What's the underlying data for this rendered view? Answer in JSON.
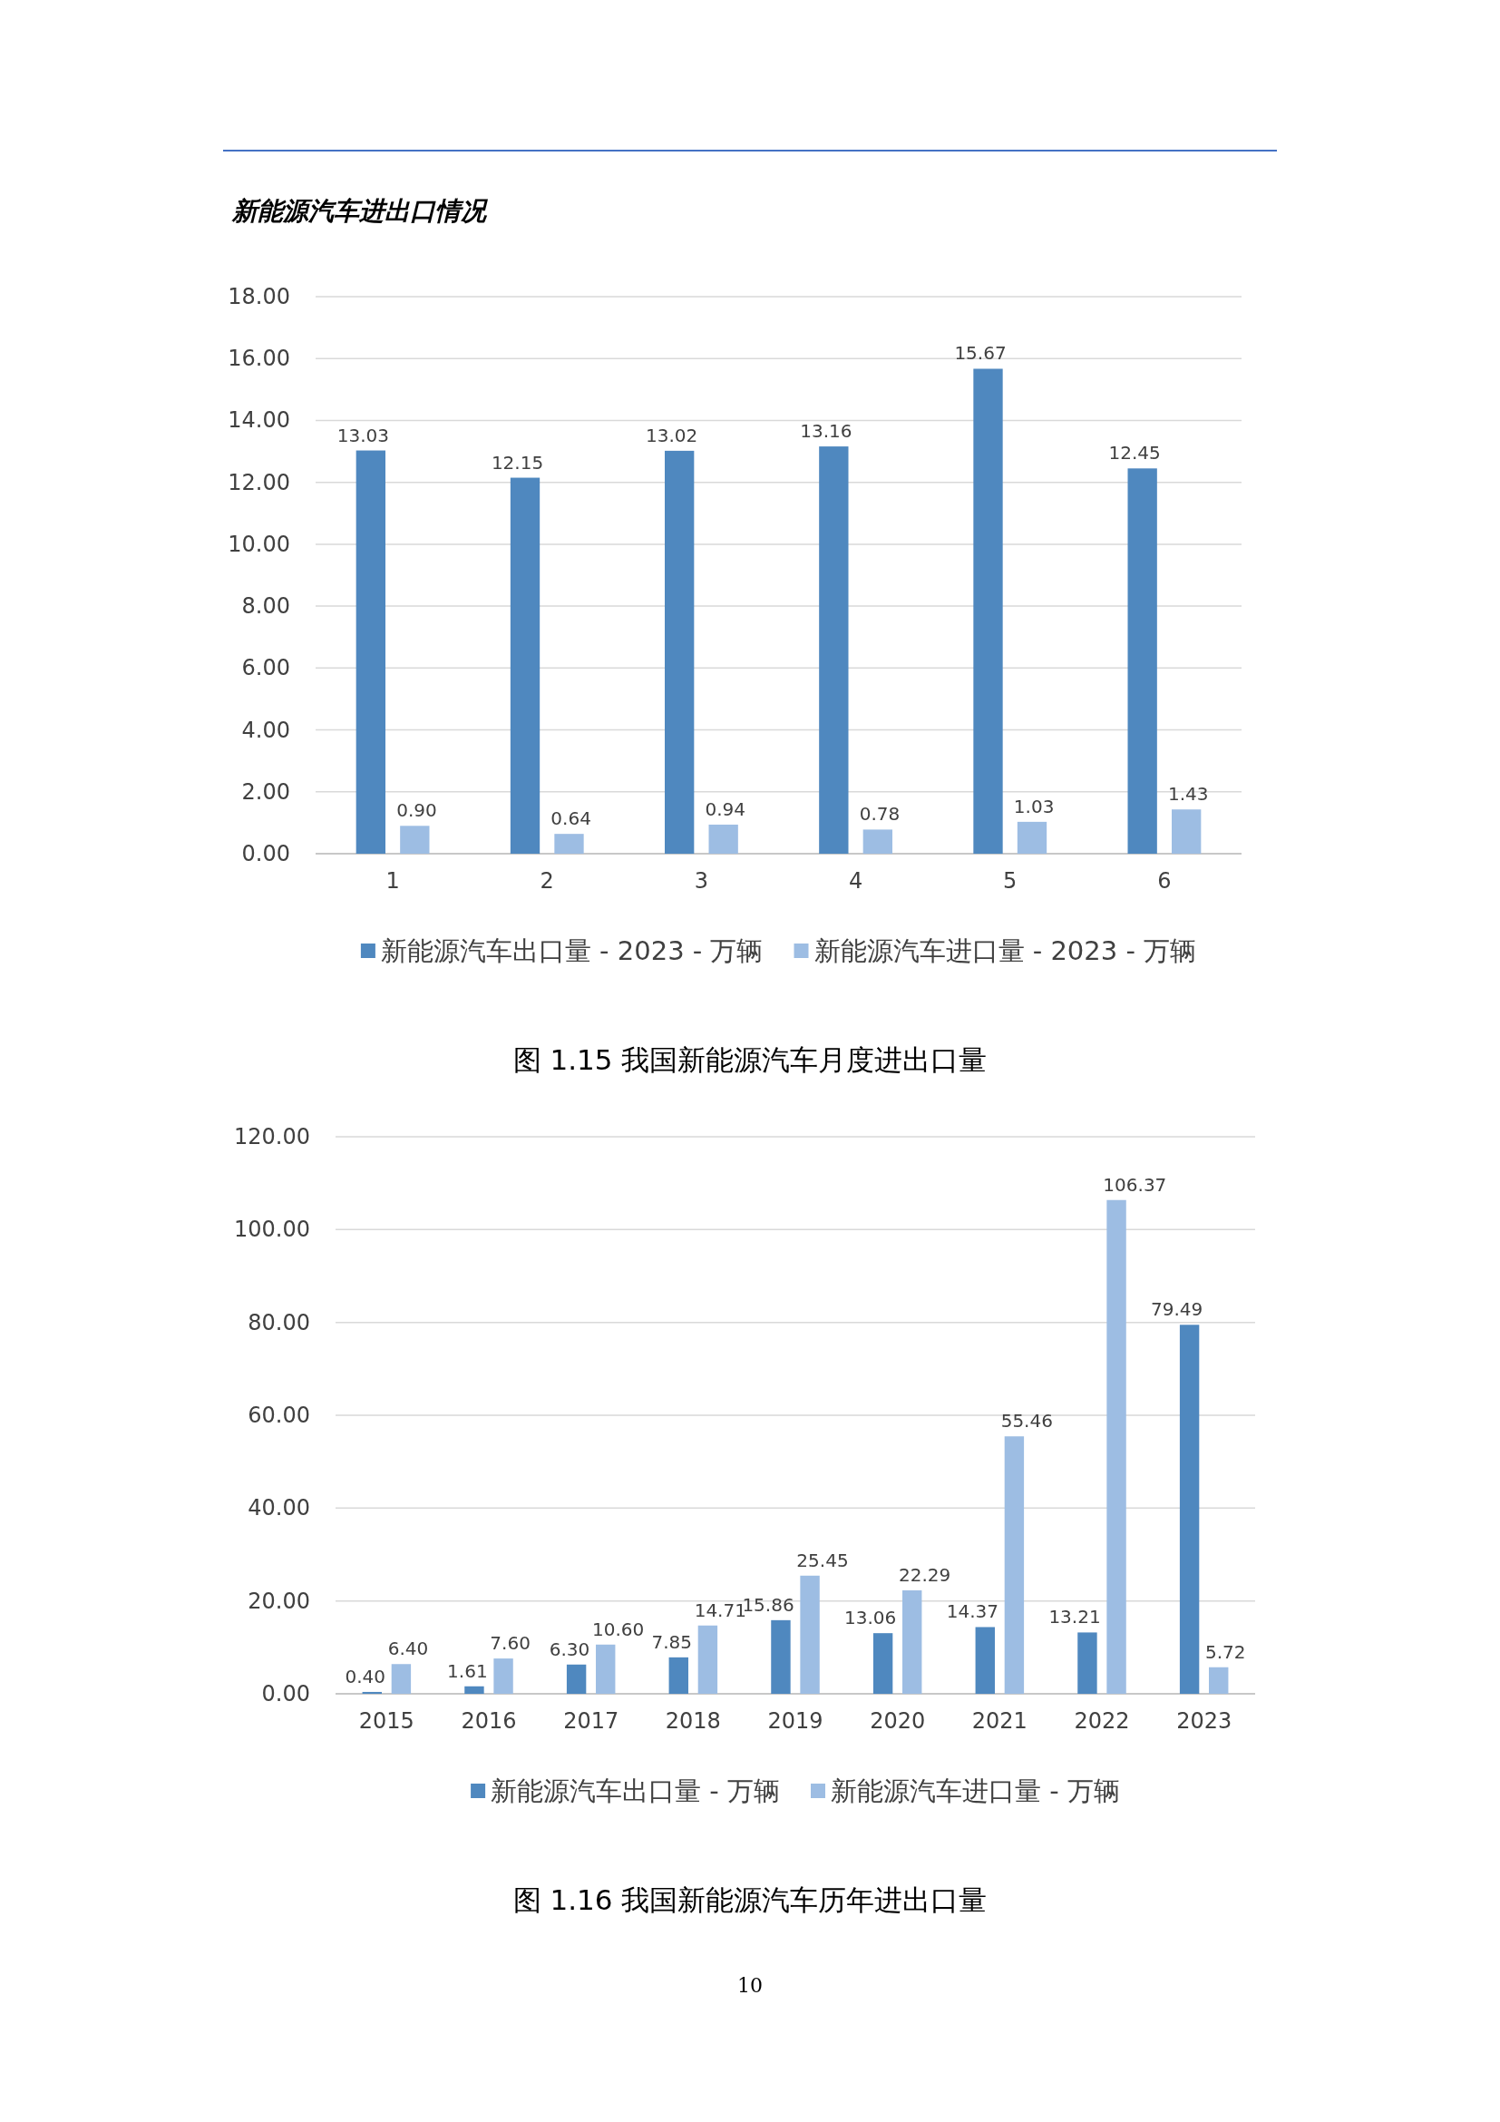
{
  "chart_data": [
    {
      "type": "bar",
      "title": "新能源汽车进出口情况",
      "categories": [
        "1",
        "2",
        "3",
        "4",
        "5",
        "6"
      ],
      "series": [
        {
          "name": "新能源汽车出口量 - 2023 - 万辆",
          "color": "#4f88bf",
          "values": [
            13.03,
            12.15,
            13.02,
            13.16,
            15.67,
            12.45
          ],
          "value_labels": [
            "13.03",
            "12.15",
            "13.02",
            "13.16",
            "15.67",
            "12.45"
          ]
        },
        {
          "name": "新能源汽车进口量 - 2023 - 万辆",
          "color": "#9dbde3",
          "values": [
            0.9,
            0.64,
            0.94,
            0.78,
            1.03,
            1.43
          ],
          "value_labels": [
            "0.90",
            "0.64",
            "0.94",
            "0.78",
            "1.03",
            "1.43"
          ]
        }
      ],
      "ylim": [
        0,
        18
      ],
      "yticks": [
        {
          "value": 0,
          "label": "0.00"
        },
        {
          "value": 2,
          "label": "2.00"
        },
        {
          "value": 4,
          "label": "4.00"
        },
        {
          "value": 6,
          "label": "6.00"
        },
        {
          "value": 8,
          "label": "8.00"
        },
        {
          "value": 10,
          "label": "10.00"
        },
        {
          "value": 12,
          "label": "12.00"
        },
        {
          "value": 14,
          "label": "14.00"
        },
        {
          "value": 16,
          "label": "16.00"
        },
        {
          "value": 18,
          "label": "18.00"
        }
      ],
      "grid": "y",
      "legend": "bottom",
      "annotations": [
        "图 1.15 我国新能源汽车月度进出口量"
      ]
    },
    {
      "type": "bar",
      "categories": [
        "2015",
        "2016",
        "2017",
        "2018",
        "2019",
        "2020",
        "2021",
        "2022",
        "2023"
      ],
      "series": [
        {
          "name": "新能源汽车出口量 - 万辆",
          "color": "#4f88bf",
          "values": [
            0.4,
            1.61,
            6.3,
            7.85,
            15.86,
            13.06,
            14.37,
            13.21,
            79.49
          ],
          "value_labels": [
            "0.40",
            "1.61",
            "6.30",
            "7.85",
            "15.86",
            "13.06",
            "14.37",
            "13.21",
            "79.49"
          ]
        },
        {
          "name": "新能源汽车进口量 - 万辆",
          "color": "#9dbde3",
          "values": [
            6.4,
            7.6,
            10.6,
            14.71,
            25.45,
            22.29,
            55.46,
            106.37,
            5.72
          ],
          "value_labels": [
            "6.40",
            "7.60",
            "10.60",
            "14.71",
            "25.45",
            "22.29",
            "55.46",
            "106.37",
            "5.72"
          ]
        }
      ],
      "ylim": [
        0,
        120
      ],
      "yticks": [
        {
          "value": 0,
          "label": "0.00"
        },
        {
          "value": 20,
          "label": "20.00"
        },
        {
          "value": 40,
          "label": "40.00"
        },
        {
          "value": 60,
          "label": "60.00"
        },
        {
          "value": 80,
          "label": "80.00"
        },
        {
          "value": 100,
          "label": "100.00"
        },
        {
          "value": 120,
          "label": "120.00"
        }
      ],
      "grid": "y",
      "legend": "bottom",
      "annotations": [
        "图 1.16 我国新能源汽车历年进出口量",
        "10"
      ]
    }
  ]
}
